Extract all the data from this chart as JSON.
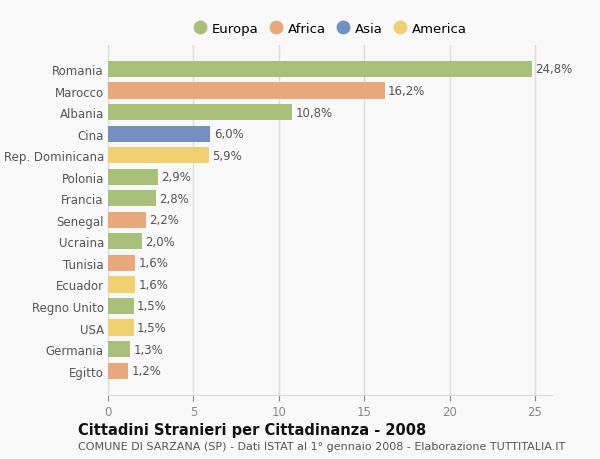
{
  "countries": [
    "Romania",
    "Marocco",
    "Albania",
    "Cina",
    "Rep. Dominicana",
    "Polonia",
    "Francia",
    "Senegal",
    "Ucraina",
    "Tunisia",
    "Ecuador",
    "Regno Unito",
    "USA",
    "Germania",
    "Egitto"
  ],
  "values": [
    24.8,
    16.2,
    10.8,
    6.0,
    5.9,
    2.9,
    2.8,
    2.2,
    2.0,
    1.6,
    1.6,
    1.5,
    1.5,
    1.3,
    1.2
  ],
  "labels": [
    "24,8%",
    "16,2%",
    "10,8%",
    "6,0%",
    "5,9%",
    "2,9%",
    "2,8%",
    "2,2%",
    "2,0%",
    "1,6%",
    "1,6%",
    "1,5%",
    "1,5%",
    "1,3%",
    "1,2%"
  ],
  "continents": [
    "Europa",
    "Africa",
    "Europa",
    "Asia",
    "America",
    "Europa",
    "Europa",
    "Africa",
    "Europa",
    "Africa",
    "America",
    "Europa",
    "America",
    "Europa",
    "Africa"
  ],
  "continent_colors": {
    "Europa": "#a8c07a",
    "Africa": "#e8a87c",
    "Asia": "#7390c0",
    "America": "#f0d070"
  },
  "legend_order": [
    "Europa",
    "Africa",
    "Asia",
    "America"
  ],
  "xlim": [
    0,
    26
  ],
  "xticks": [
    0,
    5,
    10,
    15,
    20,
    25
  ],
  "title": "Cittadini Stranieri per Cittadinanza - 2008",
  "subtitle": "COMUNE DI SARZANA (SP) - Dati ISTAT al 1° gennaio 2008 - Elaborazione TUTTITALIA.IT",
  "background_color": "#f9f9f9",
  "grid_color": "#dddddd",
  "bar_height": 0.75,
  "label_fontsize": 8.5,
  "title_fontsize": 10.5,
  "subtitle_fontsize": 8,
  "ytick_fontsize": 8.5
}
